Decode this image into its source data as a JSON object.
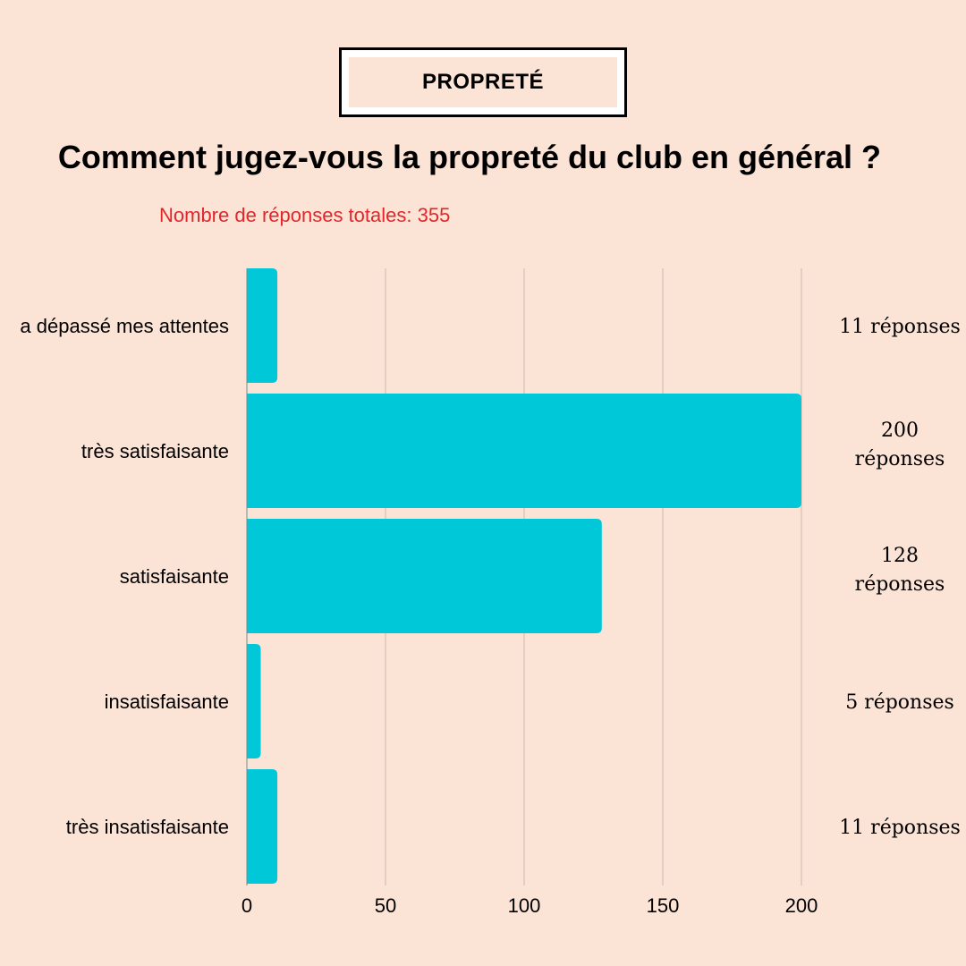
{
  "header": {
    "badge": "PROPRETÉ",
    "title": "Comment jugez-vous la propreté du club en général ?",
    "subtitle": "Nombre de réponses totales: 355"
  },
  "colors": {
    "background": "#fbe3d6",
    "bar": "#00c8d8",
    "subtitle": "#e2272b",
    "grid": "#c9b8ae"
  },
  "chart_data": {
    "type": "bar",
    "orientation": "horizontal",
    "categories": [
      "a dépassé mes attentes",
      "très satisfaisante",
      "satisfaisante",
      "insatisfaisante",
      "très insatisfaisante"
    ],
    "values": [
      11,
      200,
      128,
      5,
      11
    ],
    "data_labels": [
      [
        "11 réponses"
      ],
      [
        "200",
        "réponses"
      ],
      [
        "128",
        "réponses"
      ],
      [
        "5 réponses"
      ],
      [
        "11 réponses"
      ]
    ],
    "x_ticks": [
      0,
      50,
      100,
      150,
      200
    ],
    "xlim": [
      0,
      200
    ],
    "grid": true
  }
}
